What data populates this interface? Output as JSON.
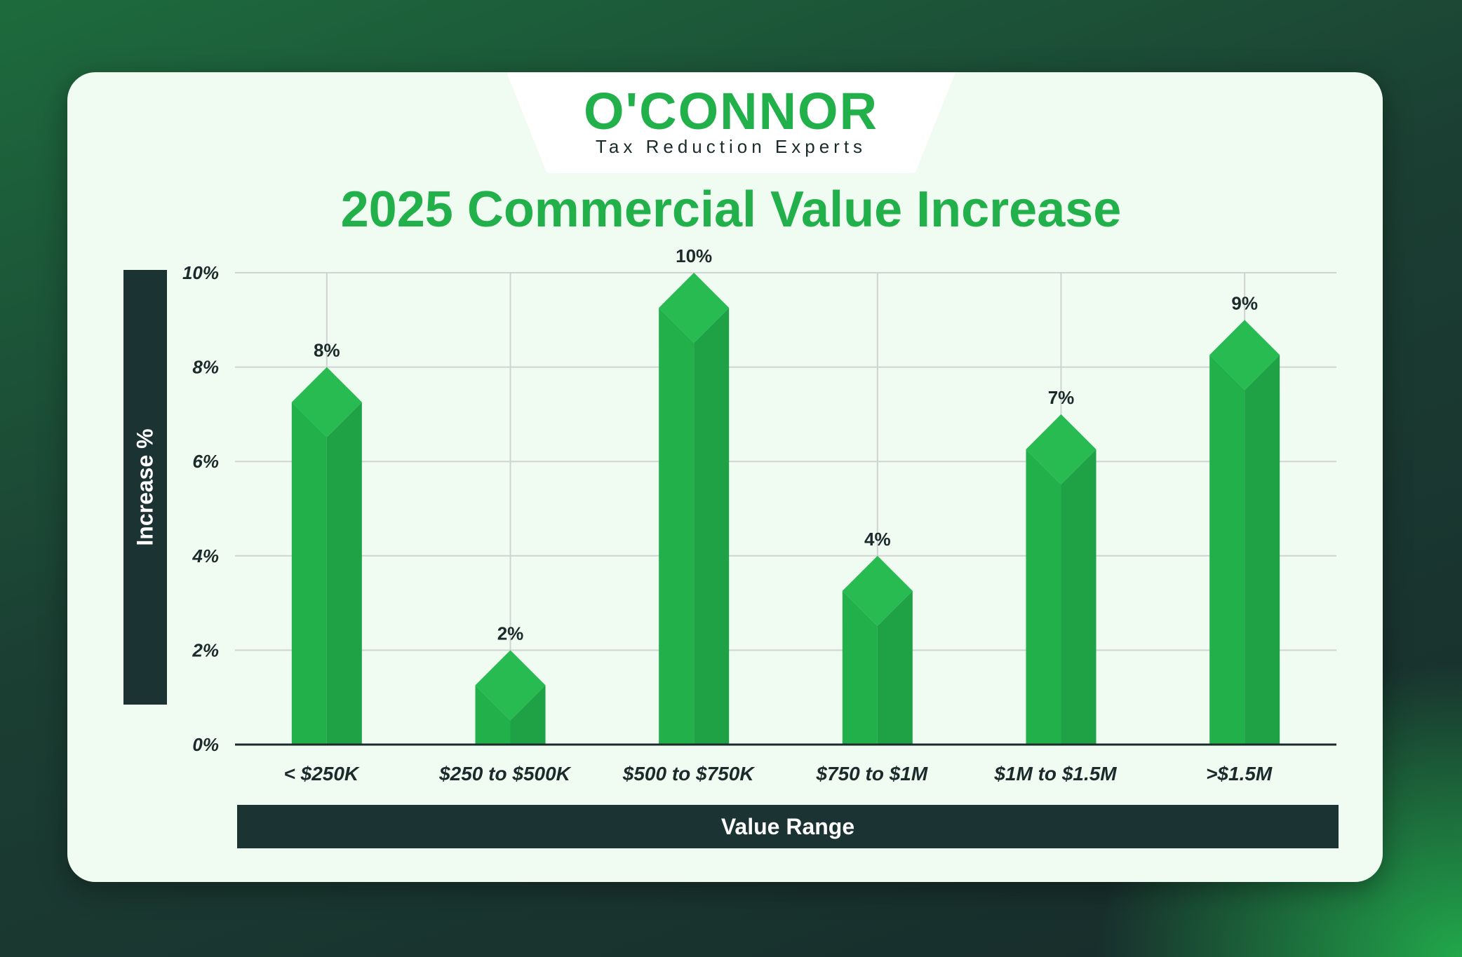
{
  "brand": {
    "name": "O'CONNOR",
    "tagline": "Tax Reduction Experts"
  },
  "colors": {
    "bar_front": "#22b04b",
    "bar_side": "#1fa245",
    "bar_top": "#27bb52",
    "dark": "#1b3332"
  },
  "chart_data": {
    "type": "bar",
    "title": "2025 Commercial Value Increase",
    "xlabel": "Value Range",
    "ylabel": "Increase %",
    "categories": [
      "< $250K",
      "$250 to $500K",
      "$500 to $750K",
      "$750 to $1M",
      "$1M to $1.5M",
      ">$1.5M"
    ],
    "values": [
      8,
      2,
      10,
      4,
      7,
      9
    ],
    "data_labels": [
      "8%",
      "2%",
      "10%",
      "4%",
      "7%",
      "9%"
    ],
    "ylim": [
      0,
      10
    ],
    "yticks": [
      0,
      2,
      4,
      6,
      8,
      10
    ],
    "ytick_labels": [
      "0%",
      "2%",
      "4%",
      "6%",
      "8%",
      "10%"
    ],
    "grid": true,
    "legend": "none"
  }
}
